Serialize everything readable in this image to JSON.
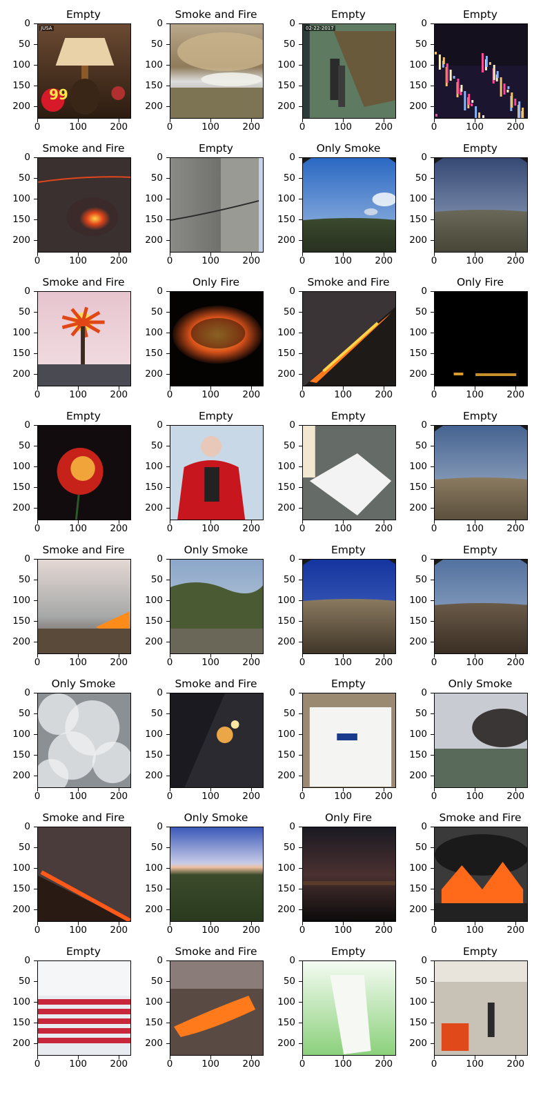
{
  "grid": {
    "x_ticks": [
      "0",
      "100",
      "200"
    ],
    "y_ticks": [
      "0",
      "50",
      "100",
      "150",
      "200"
    ],
    "images": [
      {
        "title": "Empty",
        "scene": "lamp",
        "overlay": "JUSA",
        "badge": "99"
      },
      {
        "title": "Smoke and Fire",
        "scene": "grassfire"
      },
      {
        "title": "Empty",
        "scene": "cctv",
        "overlay": "02-22-2017"
      },
      {
        "title": "Empty",
        "scene": "citynight"
      },
      {
        "title": "Smoke and Fire",
        "scene": "embers"
      },
      {
        "title": "Empty",
        "scene": "concrete"
      },
      {
        "title": "Only Smoke",
        "scene": "fisheye_sky_smoke"
      },
      {
        "title": "Empty",
        "scene": "fisheye_dusk"
      },
      {
        "title": "Smoke and Fire",
        "scene": "palm"
      },
      {
        "title": "Only Fire",
        "scene": "crater"
      },
      {
        "title": "Smoke and Fire",
        "scene": "slopefire"
      },
      {
        "title": "Only Fire",
        "scene": "darkline"
      },
      {
        "title": "Empty",
        "scene": "rose"
      },
      {
        "title": "Empty",
        "scene": "person"
      },
      {
        "title": "Empty",
        "scene": "bag_grey"
      },
      {
        "title": "Empty",
        "scene": "fisheye_hills"
      },
      {
        "title": "Smoke and Fire",
        "scene": "brushfire"
      },
      {
        "title": "Only Smoke",
        "scene": "valley"
      },
      {
        "title": "Empty",
        "scene": "fisheye_blue"
      },
      {
        "title": "Empty",
        "scene": "fisheye_plain"
      },
      {
        "title": "Only Smoke",
        "scene": "whitesmoke"
      },
      {
        "title": "Smoke and Fire",
        "scene": "aerialfire"
      },
      {
        "title": "Empty",
        "scene": "bag_box"
      },
      {
        "title": "Only Smoke",
        "scene": "citysmoke"
      },
      {
        "title": "Smoke and Fire",
        "scene": "hillfire"
      },
      {
        "title": "Only Smoke",
        "scene": "horizon"
      },
      {
        "title": "Only Fire",
        "scene": "nightglow"
      },
      {
        "title": "Smoke and Fire",
        "scene": "tirefire"
      },
      {
        "title": "Empty",
        "scene": "auditorium"
      },
      {
        "title": "Smoke and Fire",
        "scene": "forestfire"
      },
      {
        "title": "Empty",
        "scene": "bag_green"
      },
      {
        "title": "Empty",
        "scene": "mall"
      }
    ]
  }
}
